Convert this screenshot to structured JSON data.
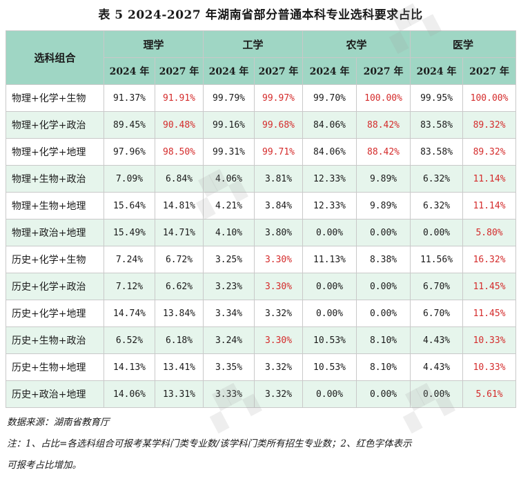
{
  "title": "表 5  2024-2027 年湖南省部分普通本科专业选科要求占比",
  "header": {
    "combo_label": "选科组合",
    "categories": [
      "理学",
      "工学",
      "农学",
      "医学"
    ],
    "years": [
      "2024 年",
      "2027 年"
    ]
  },
  "rows": [
    {
      "combo": "物理+化学+生物",
      "values": [
        "91.37%",
        "91.91%",
        "99.79%",
        "99.97%",
        "99.70%",
        "100.00%",
        "99.95%",
        "100.00%"
      ],
      "red": [
        false,
        true,
        false,
        true,
        false,
        true,
        false,
        true
      ]
    },
    {
      "combo": "物理+化学+政治",
      "values": [
        "89.45%",
        "90.48%",
        "99.16%",
        "99.68%",
        "84.06%",
        "88.42%",
        "83.58%",
        "89.32%"
      ],
      "red": [
        false,
        true,
        false,
        true,
        false,
        true,
        false,
        true
      ]
    },
    {
      "combo": "物理+化学+地理",
      "values": [
        "97.96%",
        "98.50%",
        "99.31%",
        "99.71%",
        "84.06%",
        "88.42%",
        "83.58%",
        "89.32%"
      ],
      "red": [
        false,
        true,
        false,
        true,
        false,
        true,
        false,
        true
      ]
    },
    {
      "combo": "物理+生物+政治",
      "values": [
        "7.09%",
        "6.84%",
        "4.06%",
        "3.81%",
        "12.33%",
        "9.89%",
        "6.32%",
        "11.14%"
      ],
      "red": [
        false,
        false,
        false,
        false,
        false,
        false,
        false,
        true
      ]
    },
    {
      "combo": "物理+生物+地理",
      "values": [
        "15.64%",
        "14.81%",
        "4.21%",
        "3.84%",
        "12.33%",
        "9.89%",
        "6.32%",
        "11.14%"
      ],
      "red": [
        false,
        false,
        false,
        false,
        false,
        false,
        false,
        true
      ]
    },
    {
      "combo": "物理+政治+地理",
      "values": [
        "15.49%",
        "14.71%",
        "4.10%",
        "3.80%",
        "0.00%",
        "0.00%",
        "0.00%",
        "5.80%"
      ],
      "red": [
        false,
        false,
        false,
        false,
        false,
        false,
        false,
        true
      ]
    },
    {
      "combo": "历史+化学+生物",
      "values": [
        "7.24%",
        "6.72%",
        "3.25%",
        "3.30%",
        "11.13%",
        "8.38%",
        "11.56%",
        "16.32%"
      ],
      "red": [
        false,
        false,
        false,
        true,
        false,
        false,
        false,
        true
      ]
    },
    {
      "combo": "历史+化学+政治",
      "values": [
        "7.12%",
        "6.62%",
        "3.23%",
        "3.30%",
        "0.00%",
        "0.00%",
        "6.70%",
        "11.45%"
      ],
      "red": [
        false,
        false,
        false,
        true,
        false,
        false,
        false,
        true
      ]
    },
    {
      "combo": "历史+化学+地理",
      "values": [
        "14.74%",
        "13.84%",
        "3.34%",
        "3.32%",
        "0.00%",
        "0.00%",
        "6.70%",
        "11.45%"
      ],
      "red": [
        false,
        false,
        false,
        false,
        false,
        false,
        false,
        true
      ]
    },
    {
      "combo": "历史+生物+政治",
      "values": [
        "6.52%",
        "6.18%",
        "3.24%",
        "3.30%",
        "10.53%",
        "8.10%",
        "4.43%",
        "10.33%"
      ],
      "red": [
        false,
        false,
        false,
        true,
        false,
        false,
        false,
        true
      ]
    },
    {
      "combo": "历史+生物+地理",
      "values": [
        "14.13%",
        "13.41%",
        "3.35%",
        "3.32%",
        "10.53%",
        "8.10%",
        "4.43%",
        "10.33%"
      ],
      "red": [
        false,
        false,
        false,
        false,
        false,
        false,
        false,
        true
      ]
    },
    {
      "combo": "历史+政治+地理",
      "values": [
        "14.06%",
        "13.31%",
        "3.33%",
        "3.32%",
        "0.00%",
        "0.00%",
        "0.00%",
        "5.61%"
      ],
      "red": [
        false,
        false,
        false,
        false,
        false,
        false,
        false,
        true
      ]
    }
  ],
  "notes": {
    "source": "数据来源：湖南省教育厅",
    "note_line1": "注：1、占比=各选科组合可报考某学科门类专业数/该学科门类所有招生专业数；2、红色字体表示",
    "note_line2": "可报考占比增加。"
  },
  "colors": {
    "header_bg": "#9fd6c4",
    "stripe_bg": "#e6f5ec",
    "increase_red": "#d42a2a"
  }
}
